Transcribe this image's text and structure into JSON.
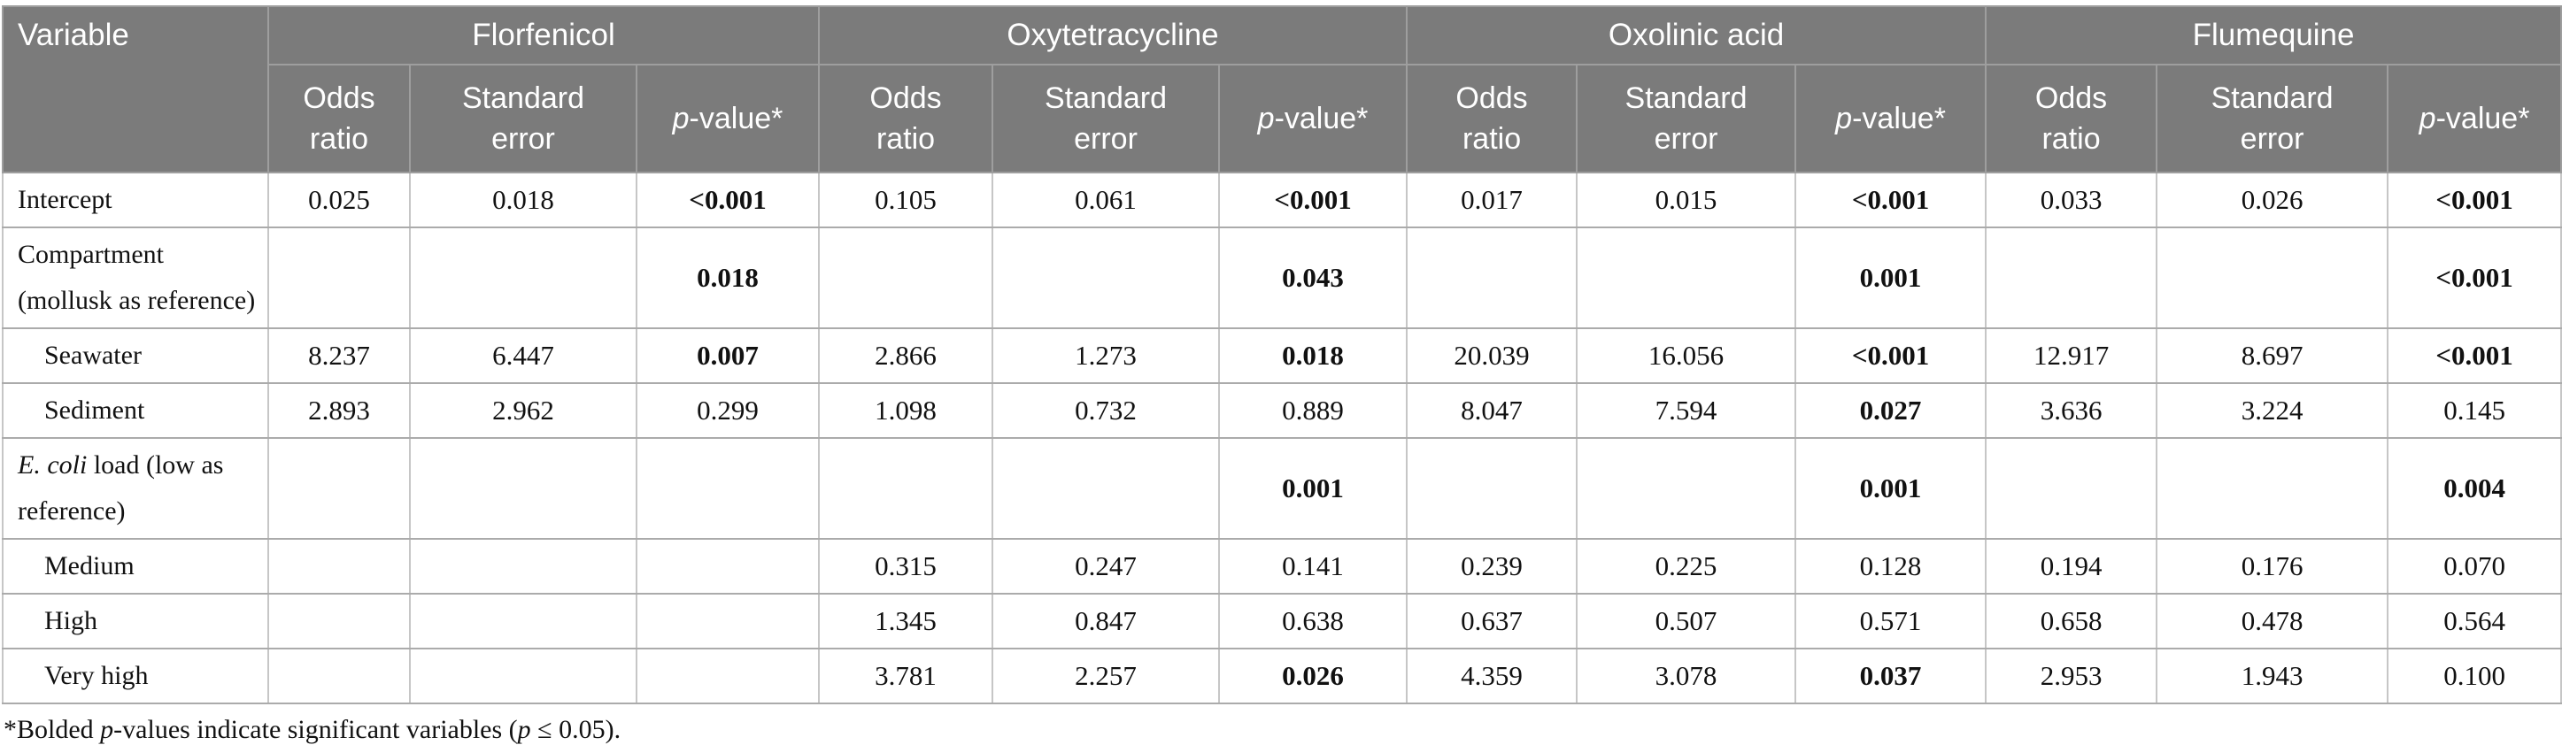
{
  "header": {
    "variable_label": "Variable",
    "groups": [
      "Florfenicol",
      "Oxytetracycline",
      "Oxolinic acid",
      "Flumequine"
    ],
    "sub_columns": [
      {
        "name": "odds-ratio",
        "parts": [
          {
            "t": "Odds"
          },
          {
            "br": true
          },
          {
            "t": "ratio"
          }
        ]
      },
      {
        "name": "standard-error",
        "parts": [
          {
            "t": "Standard"
          },
          {
            "br": true
          },
          {
            "t": "error"
          }
        ]
      },
      {
        "name": "p-value",
        "parts": [
          {
            "t": "p",
            "i": true
          },
          {
            "t": "-value*"
          }
        ]
      }
    ]
  },
  "rows": [
    {
      "id": "intercept",
      "indent": false,
      "tall": false,
      "label_parts": [
        {
          "t": "Intercept"
        }
      ],
      "cells": [
        {
          "v": "0.025"
        },
        {
          "v": "0.018"
        },
        {
          "v": "<0.001",
          "b": true
        },
        {
          "v": "0.105"
        },
        {
          "v": "0.061"
        },
        {
          "v": "<0.001",
          "b": true
        },
        {
          "v": "0.017"
        },
        {
          "v": "0.015"
        },
        {
          "v": "<0.001",
          "b": true
        },
        {
          "v": "0.033"
        },
        {
          "v": "0.026"
        },
        {
          "v": "<0.001",
          "b": true
        }
      ]
    },
    {
      "id": "compartment",
      "indent": false,
      "tall": true,
      "label_parts": [
        {
          "t": "Compartment"
        },
        {
          "br": true
        },
        {
          "t": "(mollusk as reference)"
        }
      ],
      "cells": [
        {
          "v": ""
        },
        {
          "v": ""
        },
        {
          "v": "0.018",
          "b": true
        },
        {
          "v": ""
        },
        {
          "v": ""
        },
        {
          "v": "0.043",
          "b": true
        },
        {
          "v": ""
        },
        {
          "v": ""
        },
        {
          "v": "0.001",
          "b": true
        },
        {
          "v": ""
        },
        {
          "v": ""
        },
        {
          "v": "<0.001",
          "b": true
        }
      ]
    },
    {
      "id": "seawater",
      "indent": true,
      "tall": false,
      "label_parts": [
        {
          "t": "Seawater"
        }
      ],
      "cells": [
        {
          "v": "8.237"
        },
        {
          "v": "6.447"
        },
        {
          "v": "0.007",
          "b": true
        },
        {
          "v": "2.866"
        },
        {
          "v": "1.273"
        },
        {
          "v": "0.018",
          "b": true
        },
        {
          "v": "20.039"
        },
        {
          "v": "16.056"
        },
        {
          "v": "<0.001",
          "b": true
        },
        {
          "v": "12.917"
        },
        {
          "v": "8.697"
        },
        {
          "v": "<0.001",
          "b": true
        }
      ]
    },
    {
      "id": "sediment",
      "indent": true,
      "tall": false,
      "label_parts": [
        {
          "t": "Sediment"
        }
      ],
      "cells": [
        {
          "v": "2.893"
        },
        {
          "v": "2.962"
        },
        {
          "v": "0.299"
        },
        {
          "v": "1.098"
        },
        {
          "v": "0.732"
        },
        {
          "v": "0.889"
        },
        {
          "v": "8.047"
        },
        {
          "v": "7.594"
        },
        {
          "v": "0.027",
          "b": true
        },
        {
          "v": "3.636"
        },
        {
          "v": "3.224"
        },
        {
          "v": "0.145"
        }
      ]
    },
    {
      "id": "ecoli-load",
      "indent": false,
      "tall": true,
      "label_parts": [
        {
          "t": "E. coli",
          "i": true
        },
        {
          "t": " load (low as"
        },
        {
          "br": true
        },
        {
          "t": "reference)"
        }
      ],
      "cells": [
        {
          "v": ""
        },
        {
          "v": ""
        },
        {
          "v": ""
        },
        {
          "v": ""
        },
        {
          "v": ""
        },
        {
          "v": "0.001",
          "b": true
        },
        {
          "v": ""
        },
        {
          "v": ""
        },
        {
          "v": "0.001",
          "b": true
        },
        {
          "v": ""
        },
        {
          "v": ""
        },
        {
          "v": "0.004",
          "b": true
        }
      ]
    },
    {
      "id": "medium",
      "indent": true,
      "tall": false,
      "label_parts": [
        {
          "t": "Medium"
        }
      ],
      "cells": [
        {
          "v": ""
        },
        {
          "v": ""
        },
        {
          "v": ""
        },
        {
          "v": "0.315"
        },
        {
          "v": "0.247"
        },
        {
          "v": "0.141"
        },
        {
          "v": "0.239"
        },
        {
          "v": "0.225"
        },
        {
          "v": "0.128"
        },
        {
          "v": "0.194"
        },
        {
          "v": "0.176"
        },
        {
          "v": "0.070"
        }
      ]
    },
    {
      "id": "high",
      "indent": true,
      "tall": false,
      "label_parts": [
        {
          "t": "High"
        }
      ],
      "cells": [
        {
          "v": ""
        },
        {
          "v": ""
        },
        {
          "v": ""
        },
        {
          "v": "1.345"
        },
        {
          "v": "0.847"
        },
        {
          "v": "0.638"
        },
        {
          "v": "0.637"
        },
        {
          "v": "0.507"
        },
        {
          "v": "0.571"
        },
        {
          "v": "0.658"
        },
        {
          "v": "0.478"
        },
        {
          "v": "0.564"
        }
      ]
    },
    {
      "id": "very-high",
      "indent": true,
      "tall": false,
      "label_parts": [
        {
          "t": "Very high"
        }
      ],
      "cells": [
        {
          "v": ""
        },
        {
          "v": ""
        },
        {
          "v": ""
        },
        {
          "v": "3.781"
        },
        {
          "v": "2.257"
        },
        {
          "v": "0.026",
          "b": true
        },
        {
          "v": "4.359"
        },
        {
          "v": "3.078"
        },
        {
          "v": "0.037",
          "b": true
        },
        {
          "v": "2.953"
        },
        {
          "v": "1.943"
        },
        {
          "v": "0.100"
        }
      ]
    }
  ],
  "footnote": {
    "parts": [
      {
        "t": "*Bolded "
      },
      {
        "t": "p",
        "i": true
      },
      {
        "t": "-values indicate significant variables ("
      },
      {
        "t": "p",
        "i": true
      },
      {
        "t": " ≤ 0.05)."
      }
    ]
  },
  "colors": {
    "header_bg": "#7b7b7b",
    "header_text": "#ffffff",
    "grid_horizontal": "#ababab",
    "grid_vertical": "#c6c6c6",
    "body_text": "#111111"
  }
}
